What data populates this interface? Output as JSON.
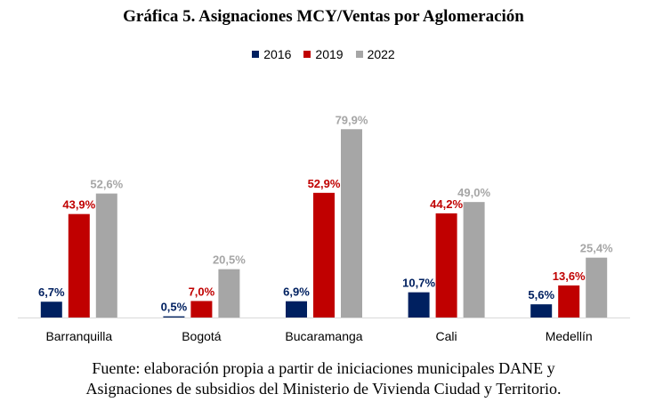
{
  "chart_data": {
    "type": "bar",
    "title": "Gráfica 5. Asignaciones MCY/Ventas por Aglomeración",
    "categories": [
      "Barranquilla",
      "Bogotá",
      "Bucaramanga",
      "Cali",
      "Medellín"
    ],
    "series": [
      {
        "name": "2016",
        "color": "#002060",
        "values": [
          6.7,
          0.5,
          6.9,
          10.7,
          5.6
        ],
        "labels": [
          "6,7%",
          "0,5%",
          "6,9%",
          "10,7%",
          "5,6%"
        ],
        "label_color": "#002060"
      },
      {
        "name": "2019",
        "color": "#C00000",
        "values": [
          43.9,
          7.0,
          52.9,
          44.2,
          13.6
        ],
        "labels": [
          "43,9%",
          "7,0%",
          "52,9%",
          "44,2%",
          "13,6%"
        ],
        "label_color": "#C00000"
      },
      {
        "name": "2022",
        "color": "#A6A6A6",
        "values": [
          52.6,
          20.5,
          79.9,
          49.0,
          25.4
        ],
        "labels": [
          "52,6%",
          "20,5%",
          "79,9%",
          "49,0%",
          "25,4%"
        ],
        "label_color": "#A6A6A6"
      }
    ],
    "ylim": [
      0,
      80
    ],
    "grid": false,
    "legend_position": "top-center"
  },
  "source_lines": [
    "Fuente: elaboración propia a partir de iniciaciones municipales DANE y",
    "Asignaciones de subsidios del Ministerio de Vivienda Ciudad y Territorio."
  ]
}
